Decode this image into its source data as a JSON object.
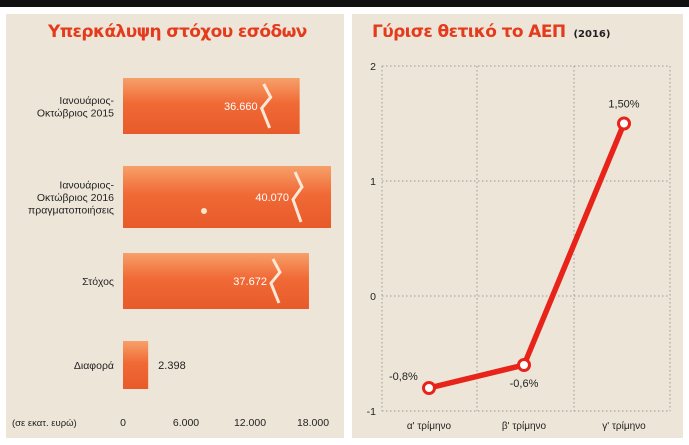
{
  "chart_data": [
    {
      "type": "bar",
      "orientation": "horizontal",
      "title": "Υπερκάλυψη στόχου εσόδων",
      "unit_note": "(σε εκατ. ευρώ)",
      "categories": [
        [
          "Ιανουάριος-",
          "Οκτώβριος 2015"
        ],
        [
          "Ιανουάριος-",
          "Οκτώβριος 2016",
          "πραγματοποιήσεις"
        ],
        [
          "Στόχος"
        ],
        [
          "Διαφορά"
        ]
      ],
      "values": [
        36660,
        40070,
        37672,
        2398
      ],
      "value_labels": [
        "36.660",
        "40.070",
        "37.672",
        "2.398"
      ],
      "x_ticks": [
        0,
        6000,
        12000,
        18000
      ],
      "x_tick_labels": [
        "0",
        "6.000",
        "12.000",
        "18.000"
      ],
      "axis_break": true,
      "grid": false,
      "colors": {
        "bar_fill": "#f06a36",
        "bar_highlight": "#f7a06a",
        "title": "#e53b1c"
      }
    },
    {
      "type": "line",
      "title": "Γύρισε θετικό το ΑΕΠ",
      "subtitle": "(2016)",
      "categories": [
        "α' τρίμηνο",
        "β' τρίμηνο",
        "γ' τρίμηνο"
      ],
      "values": [
        -0.8,
        -0.6,
        1.5
      ],
      "value_labels": [
        "-0,8%",
        "-0,6%",
        "1,50%"
      ],
      "ylim": [
        -1,
        2
      ],
      "y_ticks": [
        -1,
        0,
        1,
        2
      ],
      "y_tick_labels": [
        "-1",
        "0",
        "1",
        "2"
      ],
      "grid": true,
      "colors": {
        "line": "#e8231a",
        "marker_fill": "#ffffff",
        "grid": "#9a9a9a",
        "title": "#e53b1c"
      }
    }
  ]
}
